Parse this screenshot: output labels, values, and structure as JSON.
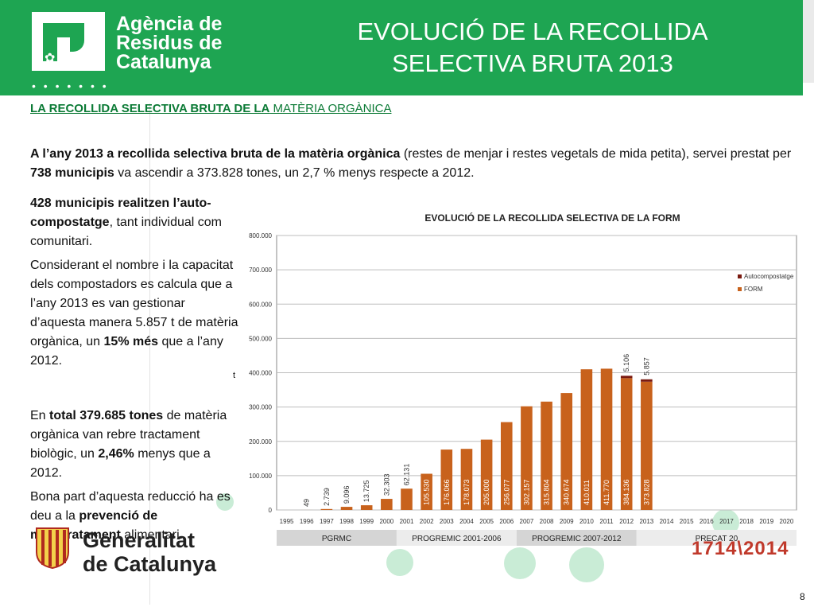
{
  "header": {
    "logo_lines": [
      "Agència de",
      "Residus de",
      "Catalunya"
    ],
    "logo_dots": "• • • • • • •",
    "title_lines": [
      "EVOLUCIÓ DE LA RECOLLIDA",
      "SELECTIVA BRUTA 2013"
    ],
    "colors": {
      "green": "#1ea552"
    }
  },
  "section": {
    "heading_bold": "LA RECOLLIDA SELECTIVA BRUTA DE LA",
    "heading_normal": " MATÈRIA ORGÀNICA"
  },
  "intro": {
    "bold1": "A l’any 2013 a recollida selectiva bruta de la matèria orgànica",
    "text1": " (restes de menjar i restes vegetals de mida petita), servei  prestat per  ",
    "bold2": "738 municipis",
    "text2": " va ascendir a 373.828 tones, un 2,7 % menys respecte a 2012."
  },
  "left": {
    "p1_bold": "428 municipis realitzen l’auto-compostatge",
    "p1_text": ", tant individual com comunitari.",
    "p2_text1": "Considerant el nombre i la capacitat dels compostadors es calcula que a l’any 2013 es van gestionar  d’aquesta manera 5.857 t de matèria orgànica, un ",
    "p2_bold": "15% més",
    "p2_text2": " que a l’any 2012.",
    "tmark": "t",
    "p3_text1": "En ",
    "p3_bold1": "total 379.685 tones",
    "p3_text2": " de matèria orgànica van rebre tractament biològic, un ",
    "p3_bold2": "2,46%",
    "p3_text3": " menys que a 2012.",
    "p4_text1": "Bona part d’aquesta reducció ha es deu a la ",
    "p4_bold": "prevenció de malbaratament",
    "p4_text2": " alimentari."
  },
  "footer": {
    "gen_line1": "Generalitat",
    "gen_line2": "de Catalunya",
    "years_logo": "1714\\2014",
    "page_number": "8"
  },
  "chart_data": {
    "type": "bar",
    "title": "EVOLUCIÓ DE LA RECOLLIDA SELECTIVA DE LA FORM",
    "categories": [
      "1995",
      "1996",
      "1997",
      "1998",
      "1999",
      "2000",
      "2001",
      "2002",
      "2003",
      "2004",
      "2005",
      "2006",
      "2007",
      "2008",
      "2009",
      "2010",
      "2011",
      "2012",
      "2013",
      "2014",
      "2015",
      "2016",
      "2017",
      "2018",
      "2019",
      "2020"
    ],
    "series": [
      {
        "name": "FORM",
        "color": "#c8621c",
        "values": [
          0,
          49,
          2739,
          9096,
          13725,
          32303,
          62131,
          105530,
          176066,
          178073,
          205000,
          256077,
          302157,
          315804,
          340674,
          410011,
          411770,
          384136,
          373828,
          null,
          null,
          null,
          null,
          null,
          null,
          null
        ]
      },
      {
        "name": "Autocompostatge",
        "color": "#7a1a10",
        "values": [
          0,
          0,
          0,
          0,
          0,
          0,
          0,
          0,
          0,
          0,
          0,
          0,
          0,
          0,
          0,
          0,
          0,
          5106,
          5857,
          null,
          null,
          null,
          null,
          null,
          null,
          null
        ]
      }
    ],
    "bar_labels": [
      "",
      "49",
      "2.739",
      "9.096",
      "13.725",
      "32.303",
      "62.131",
      "105.530",
      "176.066",
      "178.073",
      "205.000",
      "256.077",
      "302.157",
      "315.804",
      "340.674",
      "410.011",
      "411.770",
      "384.136",
      "373.828",
      "",
      "",
      "",
      "",
      "",
      "",
      ""
    ],
    "auto_labels": {
      "2012": "5.106",
      "2013": "5.857"
    },
    "yticks": [
      "0",
      "100.000",
      "200.000",
      "300.000",
      "400.000",
      "500.000",
      "600.000",
      "700.000",
      "800.000"
    ],
    "ylim": [
      0,
      800000
    ],
    "grid": true,
    "legend_position": "top-right",
    "programs": [
      {
        "label": "PGRMC",
        "from": "1995",
        "to": "2000",
        "color": "#d5d5d5"
      },
      {
        "label": "PROGREMIC 2001-2006",
        "from": "2001",
        "to": "2006",
        "color": "#ececec"
      },
      {
        "label": "PROGREMIC 2007-2012",
        "from": "2007",
        "to": "2012",
        "color": "#d5d5d5"
      },
      {
        "label": "PRECAT 20",
        "from": "2013",
        "to": "2020",
        "color": "#ececec"
      }
    ]
  }
}
